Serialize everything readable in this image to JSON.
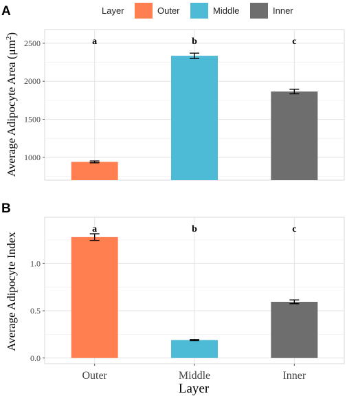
{
  "legend": {
    "title": "Layer",
    "items": [
      {
        "label": "Outer",
        "color": "#FF7F50"
      },
      {
        "label": "Middle",
        "color": "#4DBAD6"
      },
      {
        "label": "Inner",
        "color": "#6E6E6E"
      }
    ]
  },
  "chart_data": [
    {
      "type": "bar",
      "panel_label": "A",
      "categories": [
        "Outer",
        "Middle",
        "Inner"
      ],
      "values": [
        940,
        2335,
        1865
      ],
      "errors": [
        12,
        35,
        30
      ],
      "significance_letters": [
        "a",
        "b",
        "c"
      ],
      "ylabel_main": "Average Adipocyte Area (μm",
      "ylabel_sup": "2",
      "ylabel_end": ")",
      "yticks": [
        "1000",
        "1500",
        "2000",
        "2500"
      ],
      "ylim": [
        700,
        2680
      ],
      "grid": true
    },
    {
      "type": "bar",
      "panel_label": "B",
      "categories": [
        "Outer",
        "Middle",
        "Inner"
      ],
      "values": [
        1.28,
        0.19,
        0.595
      ],
      "errors": [
        0.035,
        0.006,
        0.02
      ],
      "significance_letters": [
        "a",
        "b",
        "c"
      ],
      "ylabel": "Average Adipocyte Index",
      "yticks": [
        "0.0",
        "0.5",
        "1.0"
      ],
      "ylim": [
        -0.06,
        1.49
      ],
      "xlabel": "Layer",
      "grid": true
    }
  ]
}
